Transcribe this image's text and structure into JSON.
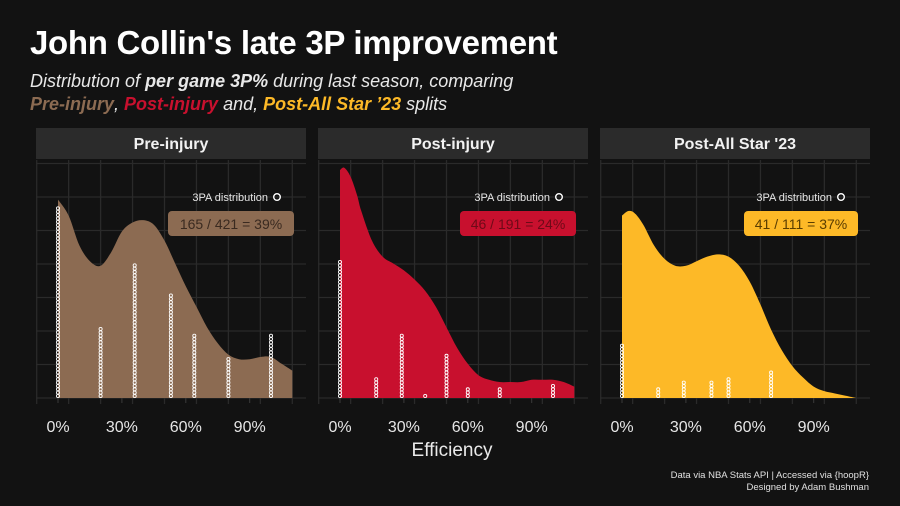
{
  "title": "John Collin's late 3P improvement",
  "subtitle": {
    "line1_pre": "Distribution of ",
    "line1_bold": "per game 3P%",
    "line1_post": " during last season, comparing",
    "split1": "Pre-injury",
    "sep1": ", ",
    "split2": "Post-injury",
    "sep2": " and, ",
    "split3": "Post-All Star ’23",
    "end": " splits"
  },
  "caption": {
    "line1": "Data via NBA Stats API | Accessed via {hoopR}",
    "line2": "Designed by Adam Bushman"
  },
  "colors": {
    "background": "#121212",
    "pre": "#8c6b52",
    "post": "#c8102e",
    "allstar": "#fdb927",
    "strip": "#2b2b2b",
    "grid": "#2a2a2a"
  },
  "chart_data": {
    "type": "area",
    "title": "John Collin's late 3P improvement",
    "xlabel": "Efficiency",
    "ylabel": "",
    "xlim": [
      -10,
      110
    ],
    "x_ticks": [
      0,
      30,
      60,
      90
    ],
    "x_tick_labels": [
      "0%",
      "30%",
      "60%",
      "90%"
    ],
    "grid": true,
    "legend": {
      "label": "3PA distribution",
      "placement": "top-right",
      "marker": "open-circle"
    },
    "panels": [
      {
        "name": "Pre-injury",
        "label": "165 / 421 = 39%",
        "color": "#8c6b52",
        "label_text_color": "#3a2a20",
        "density": {
          "x": [
            0,
            5,
            10,
            15,
            20,
            25,
            30,
            35,
            40,
            45,
            50,
            55,
            60,
            65,
            70,
            75,
            80,
            85,
            90,
            95,
            100,
            105,
            110
          ],
          "y": [
            0.87,
            0.8,
            0.67,
            0.6,
            0.58,
            0.64,
            0.73,
            0.77,
            0.78,
            0.76,
            0.69,
            0.59,
            0.49,
            0.4,
            0.31,
            0.24,
            0.19,
            0.17,
            0.17,
            0.18,
            0.18,
            0.15,
            0.12
          ]
        },
        "dots": [
          {
            "x": 0,
            "count": 57
          },
          {
            "x": 20,
            "count": 21
          },
          {
            "x": 36,
            "count": 40
          },
          {
            "x": 53,
            "count": 31
          },
          {
            "x": 64,
            "count": 19
          },
          {
            "x": 80,
            "count": 12
          },
          {
            "x": 100,
            "count": 19
          }
        ]
      },
      {
        "name": "Post-injury",
        "label": "46 / 191 = 24%",
        "color": "#c8102e",
        "label_text_color": "#6e0a18",
        "density": {
          "x": [
            0,
            2,
            5,
            8,
            10,
            15,
            20,
            25,
            30,
            35,
            40,
            45,
            50,
            55,
            60,
            65,
            70,
            75,
            80,
            85,
            90,
            95,
            100,
            105,
            110
          ],
          "y": [
            1.0,
            1.01,
            0.97,
            0.89,
            0.82,
            0.69,
            0.62,
            0.59,
            0.56,
            0.52,
            0.47,
            0.4,
            0.31,
            0.22,
            0.15,
            0.1,
            0.08,
            0.07,
            0.07,
            0.07,
            0.08,
            0.08,
            0.08,
            0.07,
            0.05
          ]
        },
        "dots": [
          {
            "x": 0,
            "count": 41
          },
          {
            "x": 17,
            "count": 6
          },
          {
            "x": 29,
            "count": 19
          },
          {
            "x": 40,
            "count": 1
          },
          {
            "x": 50,
            "count": 13
          },
          {
            "x": 60,
            "count": 3
          },
          {
            "x": 75,
            "count": 3
          },
          {
            "x": 100,
            "count": 4
          }
        ]
      },
      {
        "name": "Post-All Star '23",
        "label": "41 / 111 = 37%",
        "color": "#fdb927",
        "label_text_color": "#5a3d00",
        "density": {
          "x": [
            0,
            3,
            6,
            10,
            15,
            20,
            25,
            30,
            35,
            40,
            45,
            50,
            55,
            60,
            65,
            70,
            75,
            80,
            85,
            90,
            95,
            100,
            105,
            110
          ],
          "y": [
            0.8,
            0.82,
            0.81,
            0.76,
            0.67,
            0.61,
            0.58,
            0.58,
            0.6,
            0.62,
            0.63,
            0.62,
            0.58,
            0.51,
            0.41,
            0.3,
            0.21,
            0.14,
            0.09,
            0.05,
            0.03,
            0.02,
            0.01,
            0.0
          ]
        },
        "dots": [
          {
            "x": 0,
            "count": 16
          },
          {
            "x": 17,
            "count": 3
          },
          {
            "x": 29,
            "count": 5
          },
          {
            "x": 42,
            "count": 5
          },
          {
            "x": 50,
            "count": 6
          },
          {
            "x": 70,
            "count": 8
          }
        ]
      }
    ]
  }
}
